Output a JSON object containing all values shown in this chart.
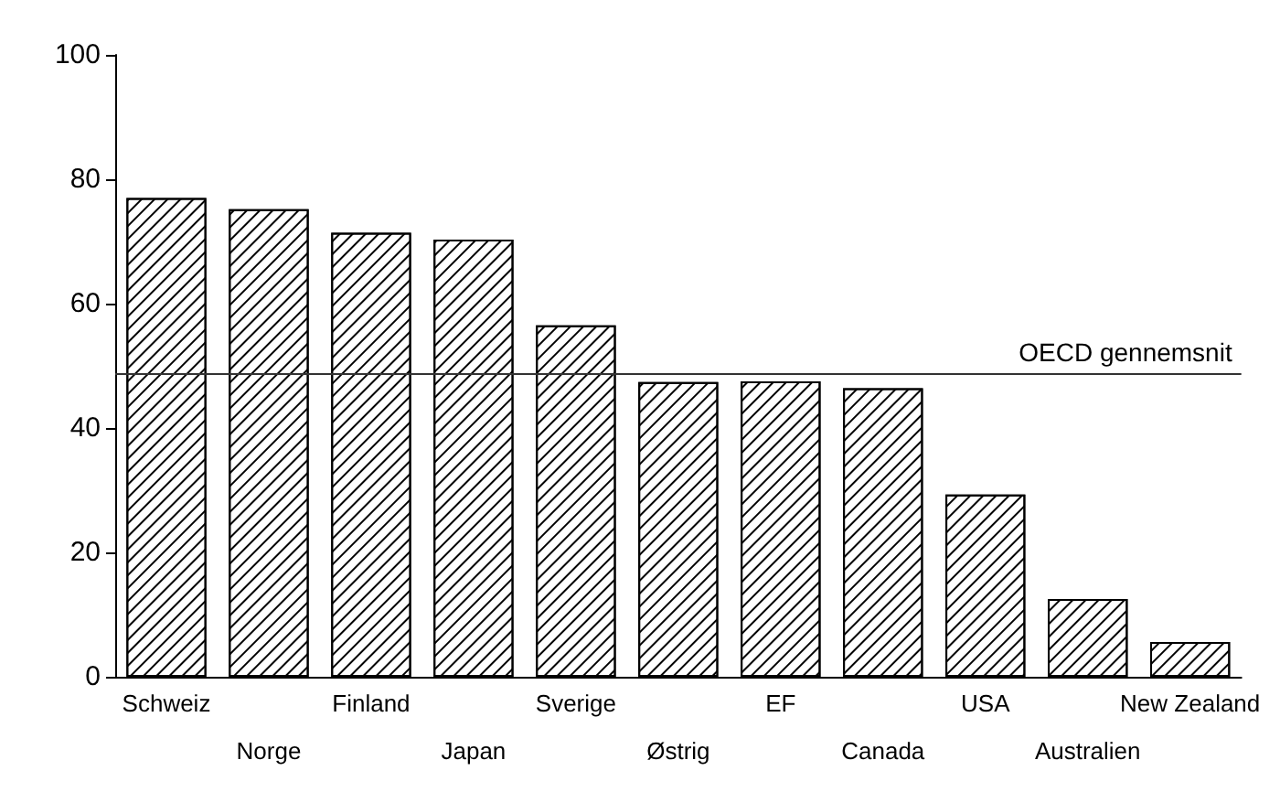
{
  "chart_data": {
    "type": "bar",
    "categories": [
      "Schweiz",
      "Norge",
      "Finland",
      "Japan",
      "Sverige",
      "Østrig",
      "EF",
      "Canada",
      "USA",
      "Australien",
      "New Zealand"
    ],
    "values": [
      77,
      75.2,
      71.4,
      70.3,
      56.5,
      47.4,
      47.5,
      46.4,
      29.3,
      12.5,
      5.6
    ],
    "color": "#000000",
    "ylim": [
      0,
      100
    ],
    "yticks": [
      0,
      20,
      40,
      60,
      80,
      100
    ],
    "grid": false,
    "ref_lines": [
      {
        "axis": "y",
        "value": 48.7,
        "label": "OECD gennemsnit",
        "color": "#333333"
      }
    ]
  }
}
